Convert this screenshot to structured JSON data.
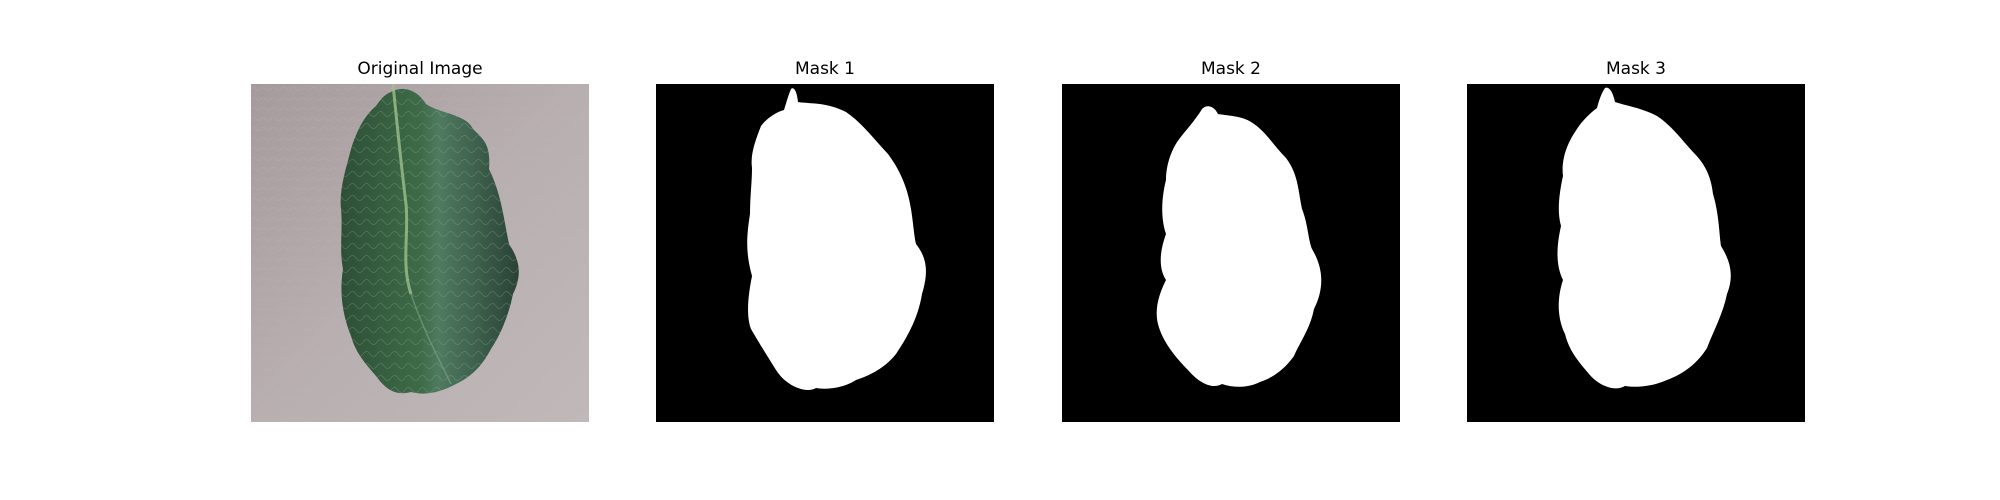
{
  "figure": {
    "panels": [
      {
        "title": "Original Image",
        "kind": "photo",
        "icon": "leaf-photo"
      },
      {
        "title": "Mask 1",
        "kind": "mask",
        "icon": "leaf-mask"
      },
      {
        "title": "Mask 2",
        "kind": "mask",
        "icon": "leaf-mask"
      },
      {
        "title": "Mask 3",
        "kind": "mask",
        "icon": "leaf-mask"
      }
    ],
    "colors": {
      "background": "#ffffff",
      "mask_background": "#000000",
      "mask_foreground": "#ffffff",
      "photo_background": "#b3aaab",
      "leaf_dark": "#2c4a38",
      "leaf_mid": "#3f6a4a",
      "leaf_light": "#7fa58c"
    }
  }
}
